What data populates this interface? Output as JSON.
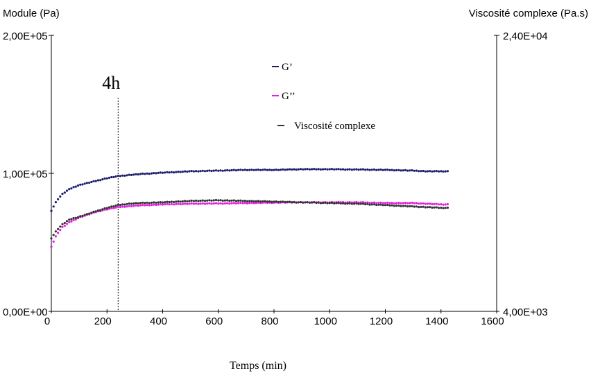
{
  "chart_data": {
    "type": "scatter",
    "title": "",
    "xlabel": "Temps (min)",
    "ylabel_left": "Module (Pa)",
    "ylabel_right": "Viscosité complexe (Pa.s)",
    "xlim": [
      0,
      1600
    ],
    "ylim_left": [
      0,
      200000
    ],
    "ylim_right": [
      4000,
      24000
    ],
    "x_ticks": [
      "0",
      "200",
      "400",
      "600",
      "800",
      "1000",
      "1200",
      "1400",
      "1600"
    ],
    "y_left_ticks": [
      "0,00E+00",
      "1,00E+05",
      "2,00E+05"
    ],
    "y_right_ticks": [
      "4,00E+03",
      "2,40E+04"
    ],
    "grid": false,
    "legend_position": "top-center",
    "annotation": {
      "label": "4h",
      "x": 240
    },
    "series": [
      {
        "name": "G’",
        "color": "#1c1c6e",
        "axis": "left",
        "x": [
          0,
          20,
          40,
          60,
          80,
          100,
          130,
          160,
          200,
          240,
          280,
          320,
          400,
          500,
          600,
          700,
          800,
          900,
          1000,
          1100,
          1200,
          1300,
          1350,
          1400,
          1430
        ],
        "y": [
          73000,
          80500,
          85000,
          88000,
          90000,
          91500,
          93000,
          94500,
          96500,
          98000,
          98800,
          99500,
          100500,
          101500,
          102000,
          102500,
          102500,
          103000,
          103000,
          102800,
          102500,
          102000,
          101500,
          101500,
          101500
        ]
      },
      {
        "name": "G’’",
        "color": "#e020e0",
        "axis": "left",
        "x": [
          0,
          20,
          40,
          60,
          80,
          100,
          130,
          160,
          200,
          240,
          280,
          320,
          400,
          500,
          600,
          700,
          800,
          900,
          1000,
          1100,
          1200,
          1300,
          1350,
          1400,
          1430
        ],
        "y": [
          47000,
          56000,
          61000,
          64000,
          66000,
          68000,
          70000,
          72000,
          74000,
          75500,
          76200,
          76800,
          77500,
          78000,
          78200,
          78500,
          78800,
          79000,
          79000,
          79000,
          78500,
          78500,
          78000,
          77500,
          77500
        ]
      },
      {
        "name": "Viscosité complexe",
        "color": "#333333",
        "axis": "right",
        "x": [
          0,
          20,
          40,
          60,
          80,
          100,
          130,
          160,
          200,
          240,
          280,
          320,
          400,
          500,
          600,
          700,
          800,
          900,
          1000,
          1100,
          1200,
          1300,
          1350,
          1400,
          1430
        ],
        "y": [
          9300,
          9900,
          10300,
          10600,
          10750,
          10850,
          11050,
          11250,
          11500,
          11700,
          11800,
          11850,
          11900,
          12000,
          12050,
          12000,
          11950,
          11900,
          11850,
          11800,
          11700,
          11600,
          11550,
          11500,
          11500
        ]
      }
    ]
  }
}
